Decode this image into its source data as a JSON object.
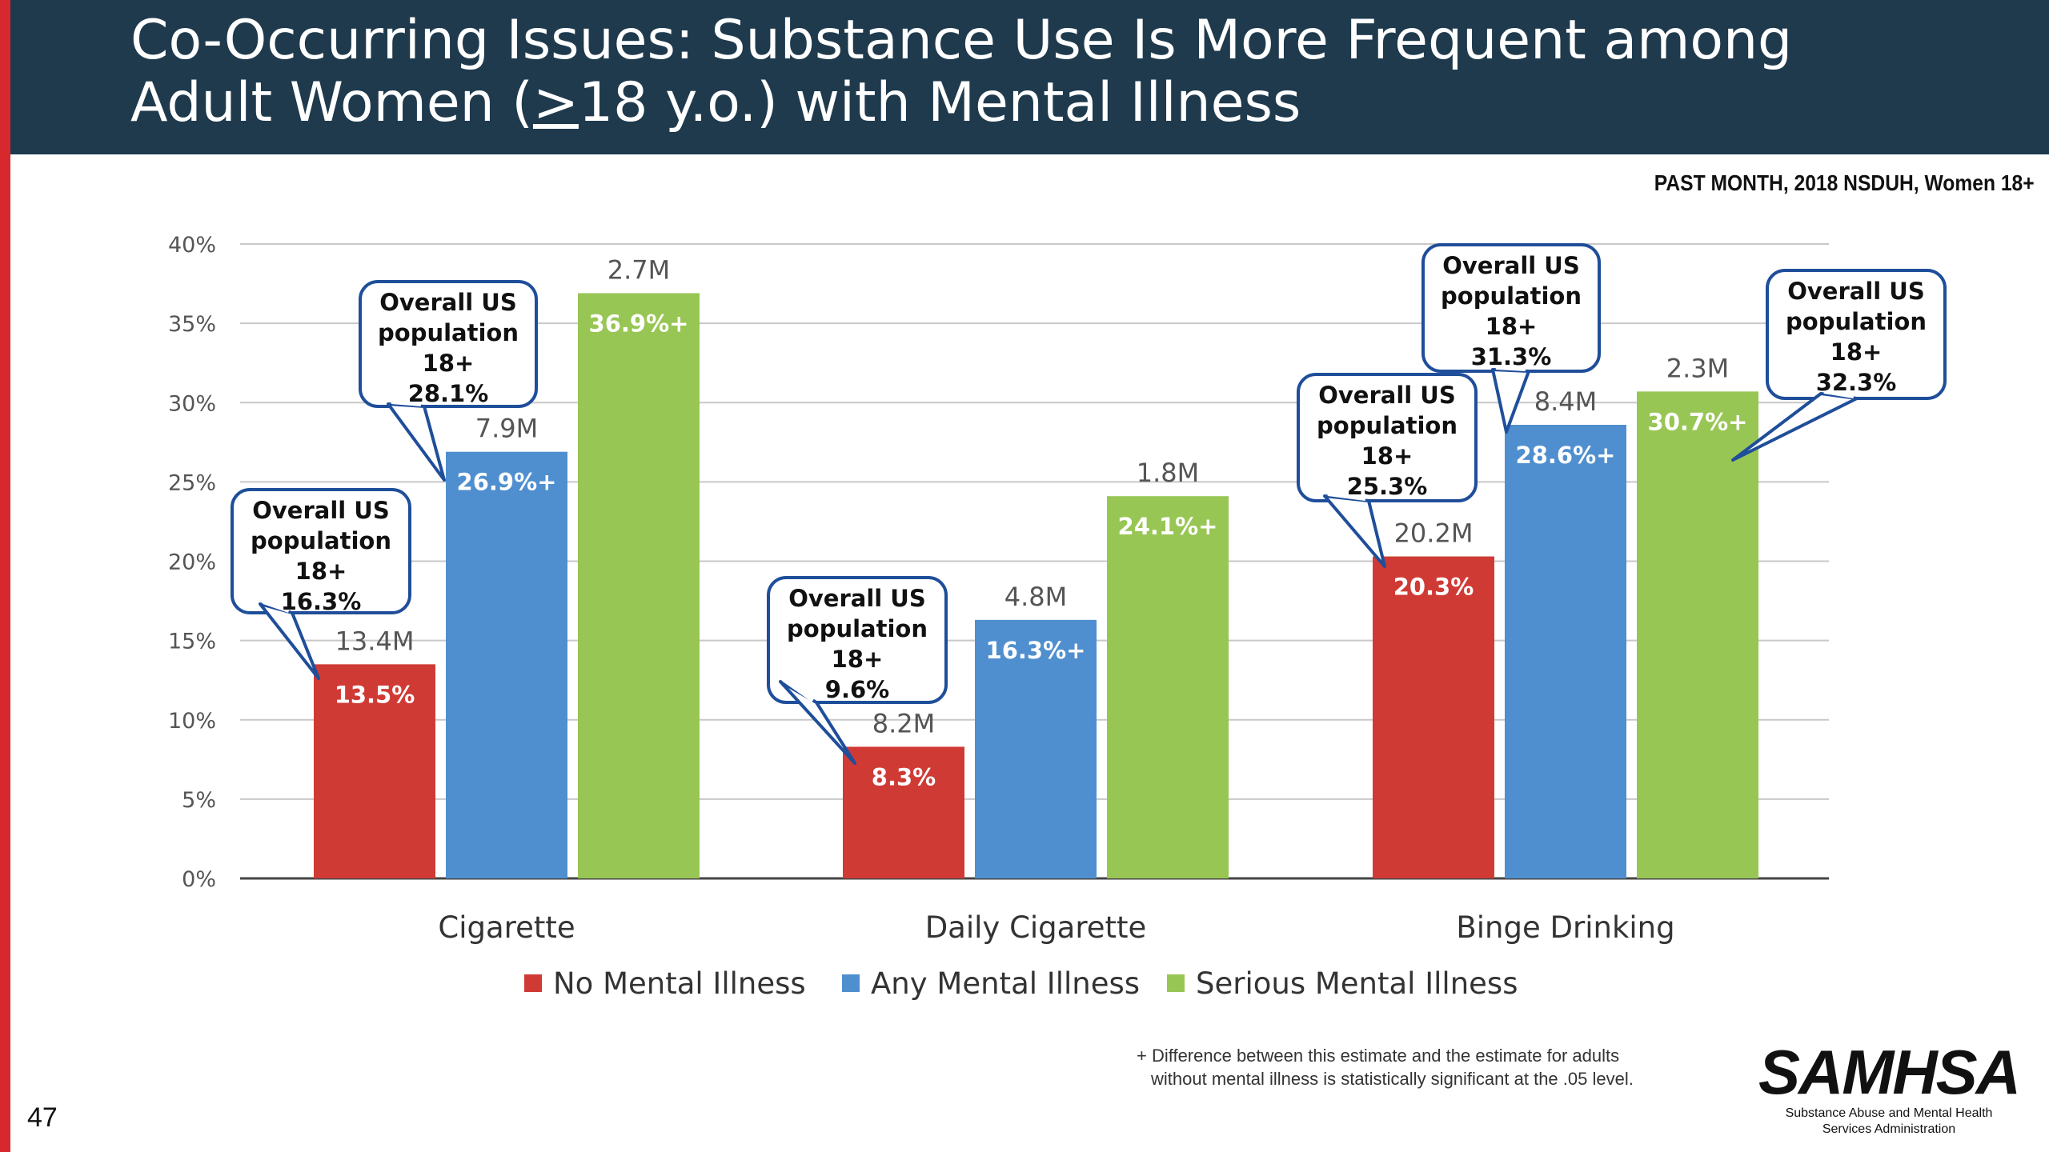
{
  "slide": {
    "title_line1": "Co-Occurring Issues: Substance Use Is More Frequent among",
    "title_line2_prefix": "Adult Women (",
    "title_line2_underlined": ">",
    "title_line2_suffix": "18 y.o.) with Mental Illness",
    "subtitle": "PAST MONTH, 2018 NSDUH, Women 18+",
    "footnote_line1": "+ Difference between this estimate and the estimate for adults",
    "footnote_line2": "without mental illness is statistically significant at the .05 level.",
    "page_number": "47",
    "logo_text": "SAMHSA",
    "logo_subtext": "Substance Abuse and Mental Health Services Administration",
    "colors": {
      "header_bg": "#1f3a4d",
      "accent_red": "#d7282e"
    }
  },
  "chart_data": {
    "type": "bar",
    "categories": [
      "Cigarette",
      "Daily Cigarette",
      "Binge Drinking"
    ],
    "ylim": [
      0,
      40
    ],
    "yticks": [
      "0%",
      "5%",
      "10%",
      "15%",
      "20%",
      "25%",
      "30%",
      "35%",
      "40%"
    ],
    "grid": true,
    "legend_position": "bottom",
    "series": [
      {
        "name": "No Mental Illness",
        "color": "#d03a35",
        "values": [
          13.5,
          8.3,
          20.3
        ],
        "labels": [
          "13.5%",
          "8.3%",
          "20.3%"
        ],
        "counts": [
          "13.4M",
          "8.2M",
          "20.2M"
        ]
      },
      {
        "name": "Any Mental Illness",
        "color": "#4f8fcf",
        "values": [
          26.9,
          16.3,
          28.6
        ],
        "labels": [
          "26.9%+",
          "16.3%+",
          "28.6%+"
        ],
        "counts": [
          "7.9M",
          "4.8M",
          "8.4M"
        ]
      },
      {
        "name": "Serious Mental Illness",
        "color": "#98c654",
        "values": [
          36.9,
          24.1,
          30.7
        ],
        "labels": [
          "36.9%+",
          "24.1%+",
          "30.7%+"
        ],
        "counts": [
          "2.7M",
          "1.8M",
          "2.3M"
        ]
      }
    ],
    "callouts": [
      {
        "category": 0,
        "series": 0,
        "lines": [
          "Overall US",
          "population",
          "18+",
          "16.3%"
        ]
      },
      {
        "category": 0,
        "series": 1,
        "lines": [
          "Overall US",
          "population",
          "18+",
          "28.1%"
        ]
      },
      {
        "category": 1,
        "series": 0,
        "lines": [
          "Overall US",
          "population",
          "18+",
          "9.6%"
        ]
      },
      {
        "category": 2,
        "series": 0,
        "lines": [
          "Overall US",
          "population",
          "18+",
          "25.3%"
        ]
      },
      {
        "category": 2,
        "series": 1,
        "lines": [
          "Overall US",
          "population",
          "18+",
          "31.3%"
        ]
      },
      {
        "category": 2,
        "series": 2,
        "lines": [
          "Overall US",
          "population",
          "18+",
          "32.3%"
        ]
      }
    ]
  }
}
